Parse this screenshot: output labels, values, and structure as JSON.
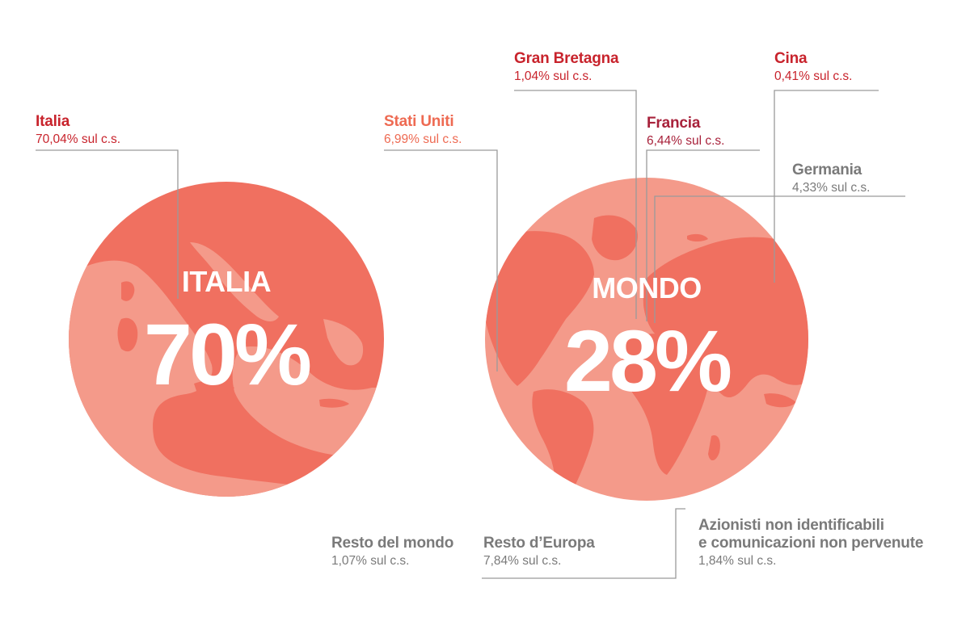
{
  "colors": {
    "globe_dark": "#f07060",
    "globe_light": "#f49a8a",
    "red": "#c8232c",
    "orange": "#ee6a52",
    "crimson": "#a8223b",
    "gray": "#7a7a7a",
    "leader": "#9a9a9a"
  },
  "globes": {
    "italia": {
      "title": "ITALIA",
      "percent": "70%"
    },
    "mondo": {
      "title": "MONDO",
      "percent": "28%"
    }
  },
  "chart_data": {
    "type": "pie",
    "title": "",
    "unit": "% sul c.s.",
    "groups": [
      {
        "name": "ITALIA",
        "total_label": "70%",
        "items": [
          {
            "name": "Italia",
            "value": 70.04,
            "label": "70,04% sul c.s."
          }
        ]
      },
      {
        "name": "MONDO",
        "total_label": "28%",
        "items": [
          {
            "name": "Gran Bretagna",
            "value": 1.04,
            "label": "1,04% sul c.s."
          },
          {
            "name": "Cina",
            "value": 0.41,
            "label": "0,41% sul c.s."
          },
          {
            "name": "Stati Uniti",
            "value": 6.99,
            "label": "6,99% sul c.s."
          },
          {
            "name": "Francia",
            "value": 6.44,
            "label": "6,44% sul c.s."
          },
          {
            "name": "Germania",
            "value": 4.33,
            "label": "4,33% sul c.s."
          },
          {
            "name": "Resto del mondo",
            "value": 1.07,
            "label": "1,07% sul c.s."
          },
          {
            "name": "Resto d’Europa",
            "value": 7.84,
            "label": "7,84% sul c.s."
          }
        ]
      },
      {
        "name": "",
        "items": [
          {
            "name": "Azionisti non identificabili e comunicazioni non pervenute",
            "value": 1.84,
            "label": "1,84% sul c.s."
          }
        ]
      }
    ]
  },
  "labels": {
    "italia": {
      "name": "Italia",
      "value": "70,04% sul c.s.",
      "color": "#c8232c"
    },
    "gran_bretagna": {
      "name": "Gran Bretagna",
      "value": "1,04% sul c.s.",
      "color": "#c8232c"
    },
    "cina": {
      "name": "Cina",
      "value": "0,41% sul c.s.",
      "color": "#c8232c"
    },
    "stati_uniti": {
      "name": "Stati Uniti",
      "value": "6,99% sul c.s.",
      "color": "#ee6a52"
    },
    "francia": {
      "name": "Francia",
      "value": "6,44% sul c.s.",
      "color": "#a8223b"
    },
    "germania": {
      "name": "Germania",
      "value": "4,33% sul c.s.",
      "color": "#7a7a7a"
    },
    "resto_mondo": {
      "name": "Resto del mondo",
      "value": "1,07% sul c.s.",
      "color": "#7a7a7a"
    },
    "resto_europa": {
      "name": "Resto d’Europa",
      "value": "7,84% sul c.s.",
      "color": "#7a7a7a"
    },
    "azionisti": {
      "name_line1": "Azionisti non identificabili",
      "name_line2": "e comunicazioni non pervenute",
      "value": "1,84% sul c.s.",
      "color": "#7a7a7a"
    }
  }
}
